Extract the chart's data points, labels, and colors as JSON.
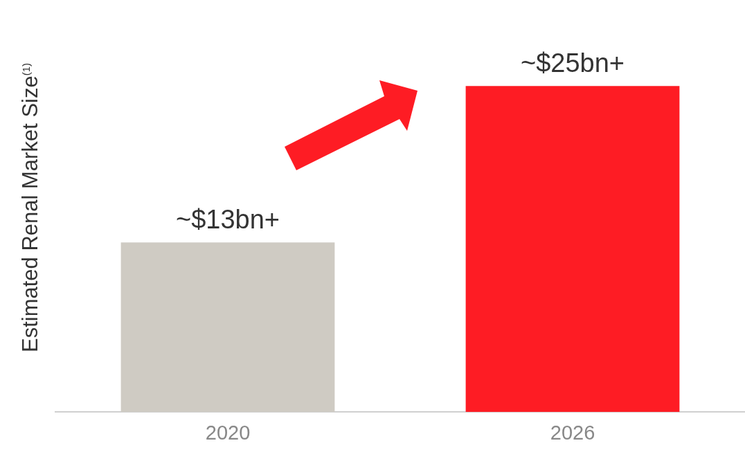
{
  "chart_data": {
    "type": "bar",
    "ylabel": "Estimated Renal Market Size$^{(1)}$",
    "categories": [
      "2020",
      "2026"
    ],
    "series": [
      {
        "colors": [
          "#cfcbc3",
          "#fe1c24"
        ],
        "values": [
          13,
          25
        ],
        "value_labels": [
          "~$13bn+",
          "~$25bn+"
        ]
      }
    ],
    "grid": false,
    "legend": false,
    "tick_labels": "x"
  }
}
